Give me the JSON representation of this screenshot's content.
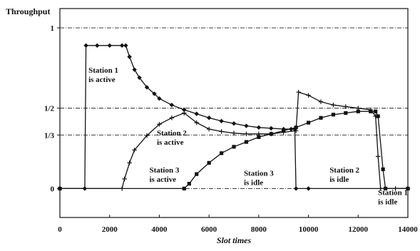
{
  "chart_data": {
    "type": "line",
    "title": "",
    "xlabel": "Slot times",
    "ylabel": "Throughput",
    "xlim": [
      0,
      14000
    ],
    "ylim": [
      -0.18,
      1.12
    ],
    "x_ticks": [
      0,
      2000,
      4000,
      6000,
      8000,
      10000,
      12000,
      14000
    ],
    "y_ticks": [
      {
        "value": 0,
        "label": "0"
      },
      {
        "value": 0.3333,
        "label": "1/3"
      },
      {
        "value": 0.5,
        "label": "1/2"
      },
      {
        "value": 1,
        "label": "1"
      }
    ],
    "grid": "dash-dot horizontal lines at y ticks",
    "series": [
      {
        "marker": "diamond",
        "color": "#111111",
        "x": [
          0,
          1000,
          1050,
          1500,
          2000,
          2500,
          2650,
          2800,
          3000,
          3200,
          3500,
          3800,
          4000,
          4500,
          5000,
          5500,
          6000,
          6500,
          7000,
          7500,
          8000,
          8500,
          9000,
          9300,
          9450,
          9500,
          10000,
          14000
        ],
        "y": [
          0,
          0,
          0.89,
          0.89,
          0.89,
          0.89,
          0.89,
          0.82,
          0.74,
          0.69,
          0.63,
          0.59,
          0.56,
          0.52,
          0.49,
          0.465,
          0.44,
          0.42,
          0.405,
          0.39,
          0.38,
          0.375,
          0.37,
          0.37,
          0.37,
          0,
          0,
          0
        ]
      },
      {
        "marker": "plus",
        "color": "#111111",
        "x": [
          0,
          2500,
          2600,
          2800,
          3000,
          3500,
          4000,
          4500,
          5000,
          5500,
          6000,
          6500,
          7000,
          7500,
          8000,
          8500,
          9000,
          9500,
          9600,
          10000,
          10500,
          11000,
          11500,
          12000,
          12500,
          12700,
          12800,
          12900,
          13500,
          14000
        ],
        "y": [
          0,
          0,
          0.06,
          0.16,
          0.24,
          0.33,
          0.4,
          0.44,
          0.47,
          0.41,
          0.37,
          0.355,
          0.345,
          0.34,
          0.34,
          0.34,
          0.35,
          0.36,
          0.6,
          0.58,
          0.54,
          0.52,
          0.51,
          0.5,
          0.49,
          0.45,
          0.2,
          0,
          0,
          0
        ]
      },
      {
        "marker": "square",
        "color": "#111111",
        "x": [
          0,
          5000,
          5200,
          5500,
          6000,
          6500,
          7000,
          7500,
          8000,
          8500,
          9000,
          9500,
          10000,
          10500,
          11000,
          11500,
          12000,
          12500,
          12700,
          12800,
          13000,
          13100,
          14000
        ],
        "y": [
          0,
          0,
          0.03,
          0.09,
          0.16,
          0.22,
          0.26,
          0.29,
          0.32,
          0.34,
          0.36,
          0.38,
          0.41,
          0.44,
          0.46,
          0.47,
          0.48,
          0.48,
          0.48,
          0.45,
          0.12,
          0,
          0
        ]
      }
    ],
    "annotations": [
      {
        "lines": [
          "Station 1",
          "is active"
        ],
        "x": 1150,
        "y": 0.72
      },
      {
        "lines": [
          "Station  2",
          "is active"
        ],
        "x": 3900,
        "y": 0.33
      },
      {
        "lines": [
          "Station  3",
          "is active"
        ],
        "x": 3600,
        "y": 0.1
      },
      {
        "lines": [
          "Station  3",
          "is idle"
        ],
        "x": 7400,
        "y": 0.08
      },
      {
        "lines": [
          "Station  2",
          "is idle"
        ],
        "x": 10850,
        "y": 0.1
      },
      {
        "lines": [
          "Station 1",
          "is idle"
        ],
        "x": 12800,
        "y": -0.04
      }
    ]
  }
}
